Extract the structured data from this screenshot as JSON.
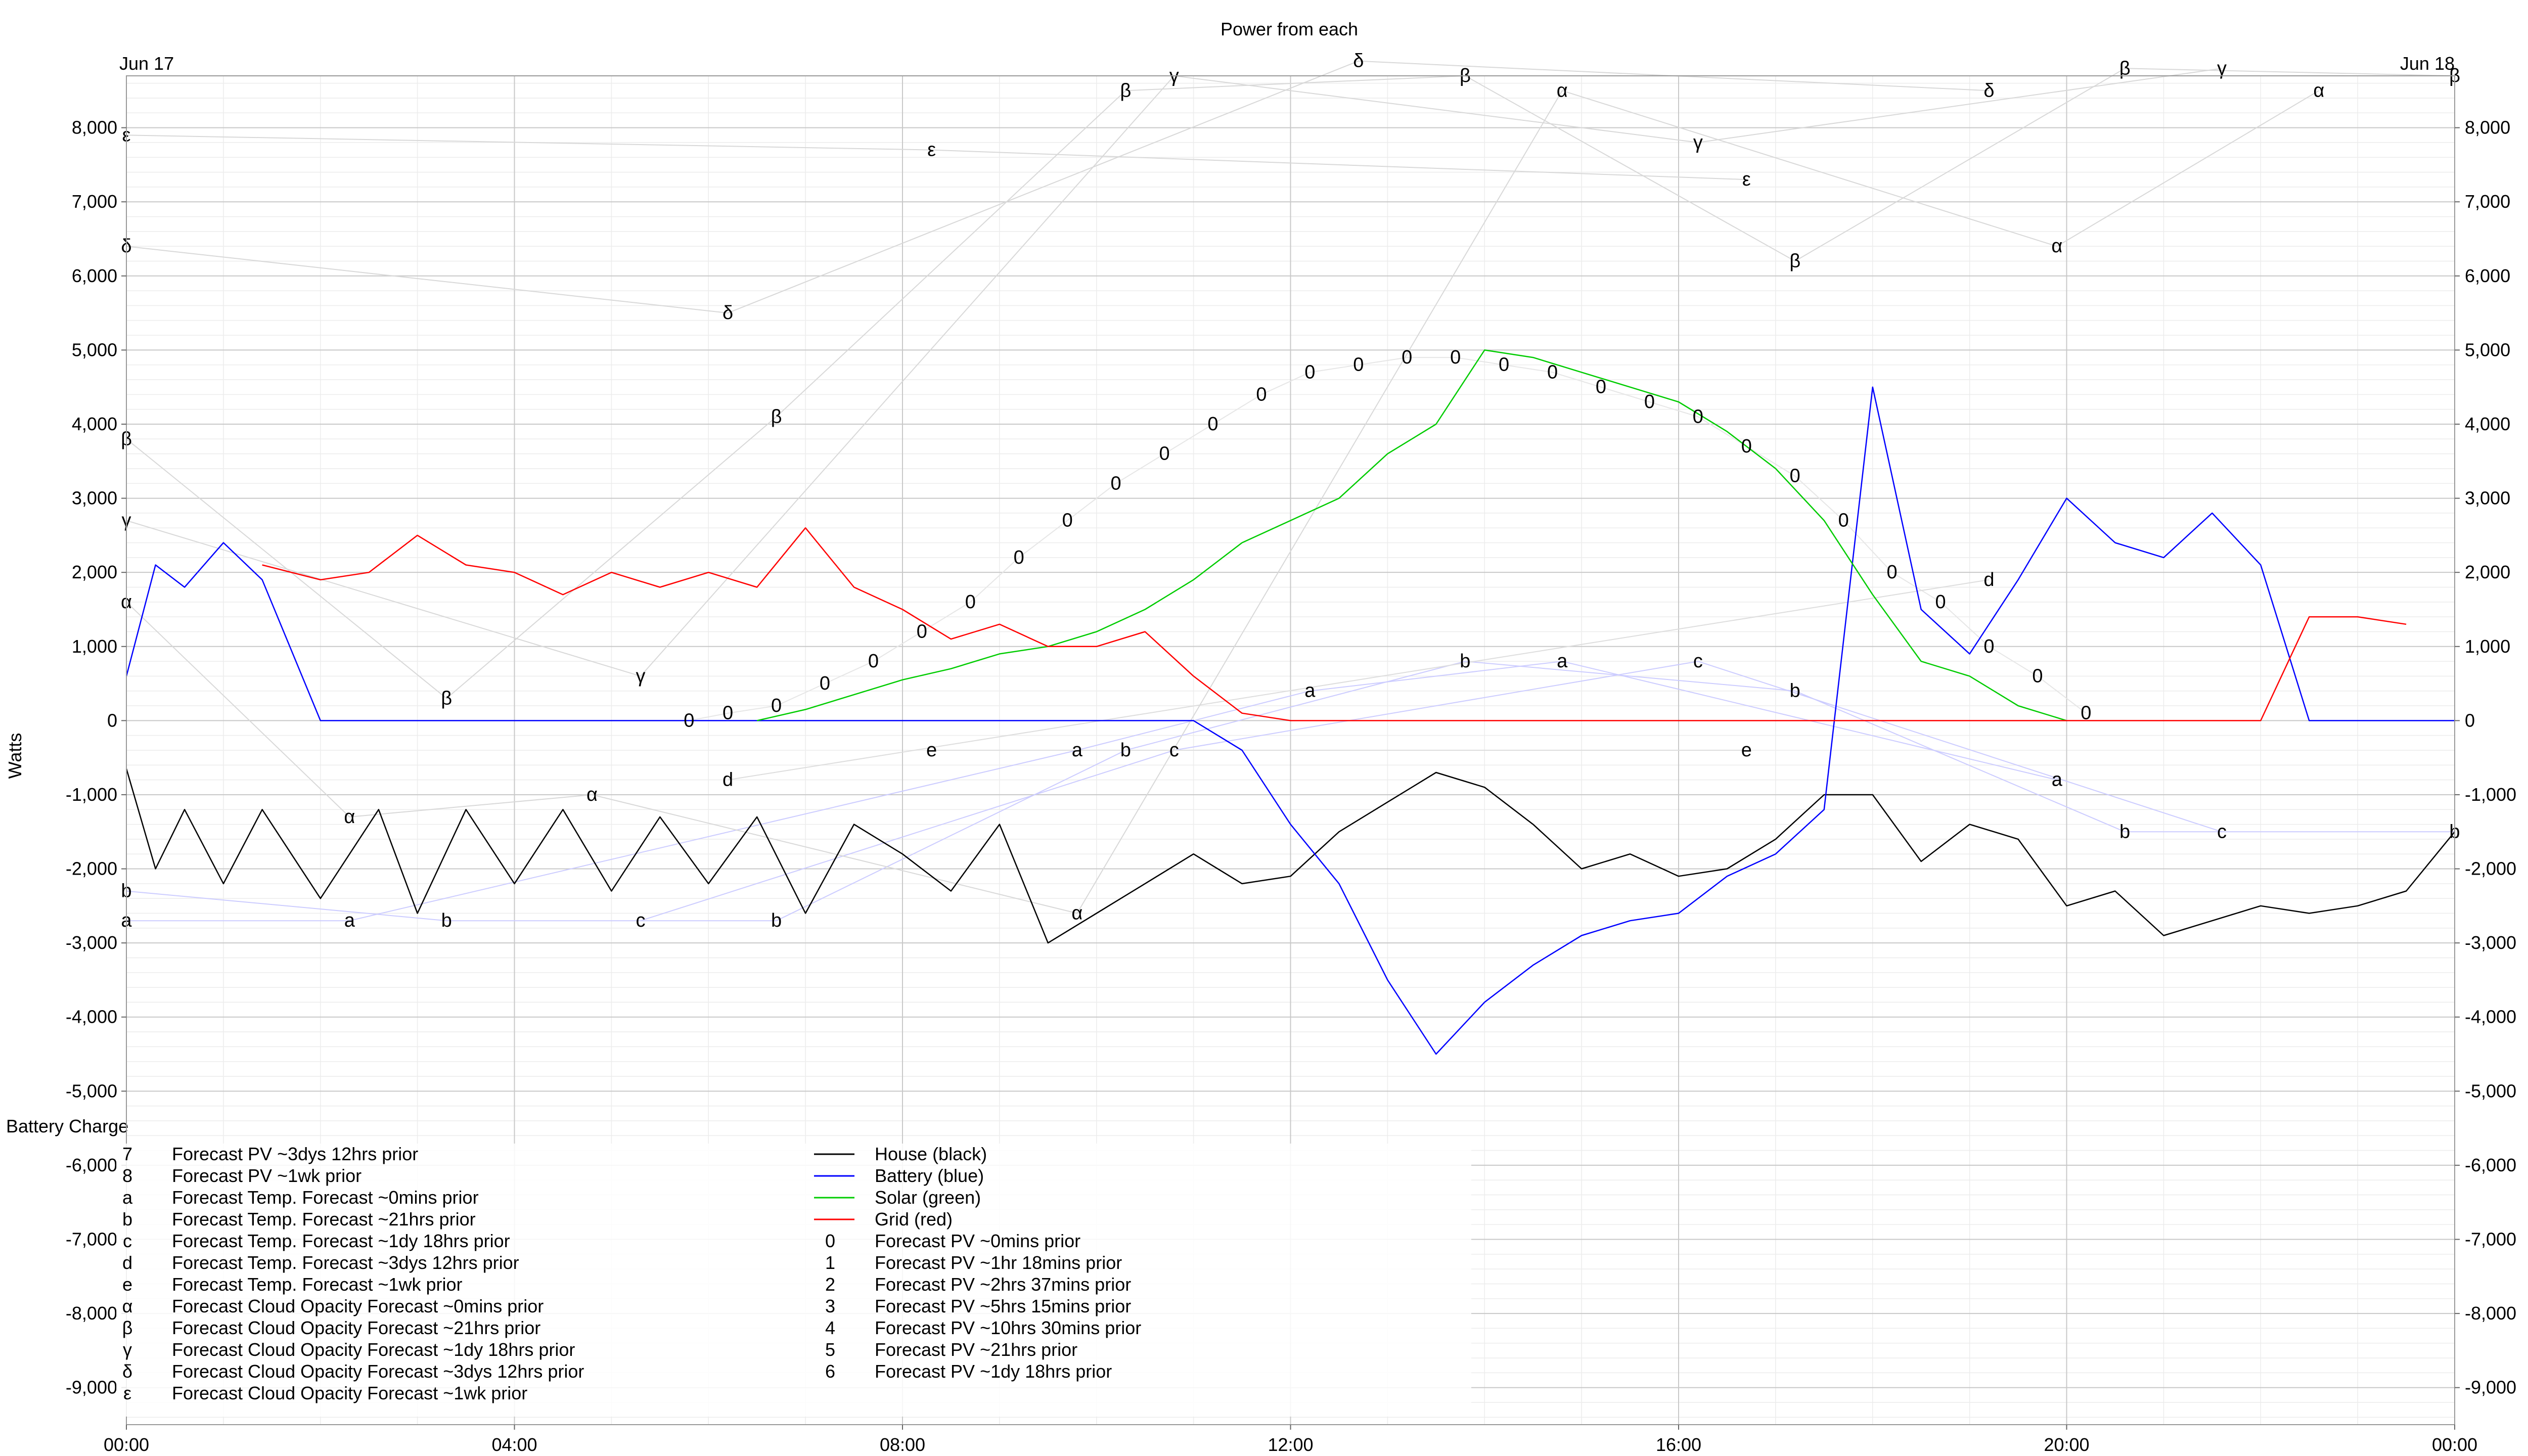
{
  "title": "Power from each",
  "ylabel": "Watts",
  "battery_label": "Battery Charge",
  "date_left": "Jun 17",
  "date_right": "Jun 18",
  "chart_data": {
    "type": "line",
    "title": "Power from each",
    "ylabel": "Watts",
    "xlim_hours": [
      0,
      24
    ],
    "ylim": [
      -9500,
      8700
    ],
    "x_ticks": [
      "00:00",
      "04:00",
      "08:00",
      "12:00",
      "16:00",
      "20:00",
      "00:00"
    ],
    "y_ticks": [
      8000,
      7000,
      6000,
      5000,
      4000,
      3000,
      2000,
      1000,
      0,
      -1000,
      -2000,
      -3000,
      -4000,
      -5000,
      -6000,
      -7000,
      -8000,
      -9000
    ],
    "y_tick_labels": [
      "8,000",
      "7,000",
      "6,000",
      "5,000",
      "4,000",
      "3,000",
      "2,000",
      "1,000",
      "0",
      "-1,000",
      "-2,000",
      "-3,000",
      "-4,000",
      "-5,000",
      "-6,000",
      "-7,000",
      "-8,000",
      "-9,000"
    ],
    "grid": true,
    "legend_placement": "bottom-left",
    "series": [
      {
        "name": "House (black)",
        "color": "#000000",
        "x": [
          0,
          0.3,
          0.6,
          1.0,
          1.4,
          2.0,
          2.6,
          3.0,
          3.5,
          4.0,
          4.5,
          5.0,
          5.5,
          6.0,
          6.5,
          7.0,
          7.5,
          8.0,
          8.5,
          9.0,
          9.5,
          10.0,
          10.5,
          11.0,
          11.5,
          12.0,
          12.5,
          13.0,
          13.5,
          14.0,
          14.5,
          15.0,
          15.5,
          16.0,
          16.5,
          17.0,
          17.5,
          18.0,
          18.5,
          19.0,
          19.5,
          20.0,
          20.5,
          21.0,
          21.5,
          22.0,
          22.5,
          23.0,
          23.5,
          24.0
        ],
        "y": [
          -650,
          -2000,
          -1200,
          -2200,
          -1200,
          -2400,
          -1200,
          -2600,
          -1200,
          -2200,
          -1200,
          -2300,
          -1300,
          -2200,
          -1300,
          -2600,
          -1400,
          -1800,
          -2300,
          -1400,
          -3000,
          -2600,
          -2200,
          -1800,
          -2200,
          -2100,
          -1500,
          -1100,
          -700,
          -900,
          -1400,
          -2000,
          -1800,
          -2100,
          -2000,
          -1600,
          -1000,
          -1000,
          -1900,
          -1400,
          -1600,
          -2500,
          -2300,
          -2900,
          -2700,
          -2500,
          -2600,
          -2500,
          -2300,
          -1500
        ]
      },
      {
        "name": "Battery (blue)",
        "color": "#0000ff",
        "x": [
          0,
          0.3,
          0.6,
          1.0,
          1.4,
          2.0,
          3.0,
          4.0,
          5.0,
          6.0,
          7.0,
          8.0,
          9.0,
          10.0,
          11.0,
          11.5,
          12.0,
          12.5,
          13.0,
          13.5,
          14.0,
          14.5,
          15.0,
          15.5,
          16.0,
          16.5,
          17.0,
          17.5,
          18.0,
          18.5,
          19.0,
          19.5,
          20.0,
          20.5,
          21.0,
          21.5,
          22.0,
          22.5,
          23.0,
          24.0
        ],
        "y": [
          600,
          2100,
          1800,
          2400,
          1900,
          0,
          0,
          0,
          0,
          0,
          0,
          0,
          0,
          0,
          0,
          -400,
          -1400,
          -2200,
          -3500,
          -4500,
          -3800,
          -3300,
          -2900,
          -2700,
          -2600,
          -2100,
          -1800,
          -1200,
          4500,
          1500,
          900,
          1900,
          3000,
          2400,
          2200,
          2800,
          2100,
          0,
          0,
          0
        ]
      },
      {
        "name": "Solar (green)",
        "color": "#00cc00",
        "x": [
          6.5,
          7.0,
          7.5,
          8.0,
          8.5,
          9.0,
          9.5,
          10.0,
          10.5,
          11.0,
          11.5,
          12.0,
          12.5,
          13.0,
          13.5,
          14.0,
          14.5,
          15.0,
          15.5,
          16.0,
          16.5,
          17.0,
          17.5,
          18.0,
          18.5,
          19.0,
          19.5,
          20.0
        ],
        "y": [
          0,
          150,
          350,
          550,
          700,
          900,
          1000,
          1200,
          1500,
          1900,
          2400,
          2700,
          3000,
          3600,
          4000,
          5000,
          4900,
          4700,
          4500,
          4300,
          3900,
          3400,
          2700,
          1700,
          800,
          600,
          200,
          0
        ]
      },
      {
        "name": "Grid (red)",
        "color": "#ff0000",
        "x": [
          1.4,
          2.0,
          2.5,
          3.0,
          3.5,
          4.0,
          4.5,
          5.0,
          5.5,
          6.0,
          6.5,
          7.0,
          7.5,
          8.0,
          8.5,
          9.0,
          9.5,
          10.0,
          10.5,
          11.0,
          11.5,
          12.0,
          16.0,
          20.0,
          22.0,
          22.5,
          23.0,
          23.5
        ],
        "y": [
          2100,
          1900,
          2000,
          2500,
          2100,
          2000,
          1700,
          2000,
          1800,
          2000,
          1800,
          2600,
          1800,
          1500,
          1100,
          1300,
          1000,
          1000,
          1200,
          600,
          100,
          0,
          0,
          0,
          0,
          1400,
          1400,
          1300
        ]
      }
    ],
    "forecast_markers": {
      "pv_~0mins": {
        "symbol": "0",
        "x": [
          5.8,
          6.2,
          6.7,
          7.2,
          7.7,
          8.2,
          8.7,
          9.2,
          9.7,
          10.2,
          10.7,
          11.2,
          11.7,
          12.2,
          12.7,
          13.2,
          13.7,
          14.2,
          14.7,
          15.2,
          15.7,
          16.2,
          16.7,
          17.2,
          17.7,
          18.2,
          18.7,
          19.2,
          19.7,
          20.2
        ],
        "y": [
          0,
          100,
          200,
          500,
          800,
          1200,
          1600,
          2200,
          2700,
          3200,
          3600,
          4000,
          4400,
          4700,
          4800,
          4900,
          4900,
          4800,
          4700,
          4500,
          4300,
          4100,
          3700,
          3300,
          2700,
          2000,
          1600,
          1000,
          600,
          100
        ]
      },
      "temp_a": {
        "symbol": "a",
        "x": [
          0,
          2.3,
          9.8,
          12.2,
          14.8,
          19.9
        ],
        "y": [
          -2700,
          -2700,
          -400,
          400,
          800,
          -800
        ]
      },
      "temp_b": {
        "symbol": "b",
        "x": [
          0,
          3.3,
          6.7,
          10.3,
          13.8,
          17.2,
          20.6,
          24.0
        ],
        "y": [
          -2300,
          -2700,
          -2700,
          -400,
          800,
          400,
          -1500,
          -1500
        ]
      },
      "temp_c": {
        "symbol": "c",
        "x": [
          5.3,
          10.8,
          16.2,
          21.6
        ],
        "y": [
          -2700,
          -400,
          800,
          -1500
        ]
      },
      "temp_d": {
        "symbol": "d",
        "x": [
          6.2,
          19.2
        ],
        "y": [
          -800,
          1900
        ]
      },
      "temp_e": {
        "symbol": "e",
        "x": [
          8.3,
          16.7
        ],
        "y": [
          -400,
          -400
        ]
      },
      "cloud_alpha": {
        "symbol": "α",
        "x": [
          0,
          2.3,
          4.8,
          9.8,
          14.8,
          19.9,
          22.6
        ],
        "y": [
          1600,
          -1300,
          -1000,
          -2600,
          8500,
          6400,
          8500
        ]
      },
      "cloud_beta": {
        "symbol": "β",
        "x": [
          0,
          3.3,
          6.7,
          10.3,
          13.8,
          17.2,
          20.6,
          24.0
        ],
        "y": [
          3800,
          300,
          4100,
          8500,
          8700,
          6200,
          8800,
          8700
        ]
      },
      "cloud_gamma": {
        "symbol": "γ",
        "x": [
          0,
          5.3,
          10.8,
          16.2,
          21.6
        ],
        "y": [
          2700,
          600,
          8700,
          7800,
          8800
        ]
      },
      "cloud_delta": {
        "symbol": "δ",
        "x": [
          0,
          6.2,
          12.7,
          19.2
        ],
        "y": [
          6400,
          5500,
          8900,
          8500
        ]
      },
      "cloud_epsilon": {
        "symbol": "ε",
        "x": [
          0,
          8.3,
          16.7
        ],
        "y": [
          7900,
          7700,
          7300
        ]
      }
    },
    "legend": [
      {
        "symbol": "7",
        "label": "Forecast PV ~3dys 12hrs prior"
      },
      {
        "symbol": "8",
        "label": "Forecast PV ~1wk prior"
      },
      {
        "symbol": "a",
        "label": "Forecast Temp. Forecast ~0mins prior"
      },
      {
        "symbol": "b",
        "label": "Forecast Temp. Forecast ~21hrs prior"
      },
      {
        "symbol": "c",
        "label": "Forecast Temp. Forecast ~1dy 18hrs prior"
      },
      {
        "symbol": "d",
        "label": "Forecast Temp. Forecast ~3dys 12hrs prior"
      },
      {
        "symbol": "e",
        "label": "Forecast Temp. Forecast ~1wk prior"
      },
      {
        "symbol": "α",
        "label": "Forecast Cloud Opacity Forecast ~0mins prior"
      },
      {
        "symbol": "β",
        "label": "Forecast Cloud Opacity Forecast ~21hrs prior"
      },
      {
        "symbol": "γ",
        "label": "Forecast Cloud Opacity Forecast ~1dy 18hrs prior"
      },
      {
        "symbol": "δ",
        "label": "Forecast Cloud Opacity Forecast ~3dys 12hrs prior"
      },
      {
        "symbol": "ε",
        "label": "Forecast Cloud Opacity Forecast ~1wk prior"
      },
      {
        "symbol": "",
        "line": "#000000",
        "label": "House (black)"
      },
      {
        "symbol": "",
        "line": "#0000ff",
        "label": "Battery (blue)"
      },
      {
        "symbol": "",
        "line": "#00cc00",
        "label": "Solar (green)"
      },
      {
        "symbol": "",
        "line": "#ff0000",
        "label": "Grid (red)"
      },
      {
        "symbol": "0",
        "label": "Forecast PV ~0mins prior"
      },
      {
        "symbol": "1",
        "label": "Forecast PV ~1hr 18mins prior"
      },
      {
        "symbol": "2",
        "label": "Forecast PV ~2hrs 37mins prior"
      },
      {
        "symbol": "3",
        "label": "Forecast PV ~5hrs 15mins prior"
      },
      {
        "symbol": "4",
        "label": "Forecast PV ~10hrs 30mins prior"
      },
      {
        "symbol": "5",
        "label": "Forecast PV ~21hrs prior"
      },
      {
        "symbol": "6",
        "label": "Forecast PV ~1dy 18hrs prior"
      }
    ]
  }
}
